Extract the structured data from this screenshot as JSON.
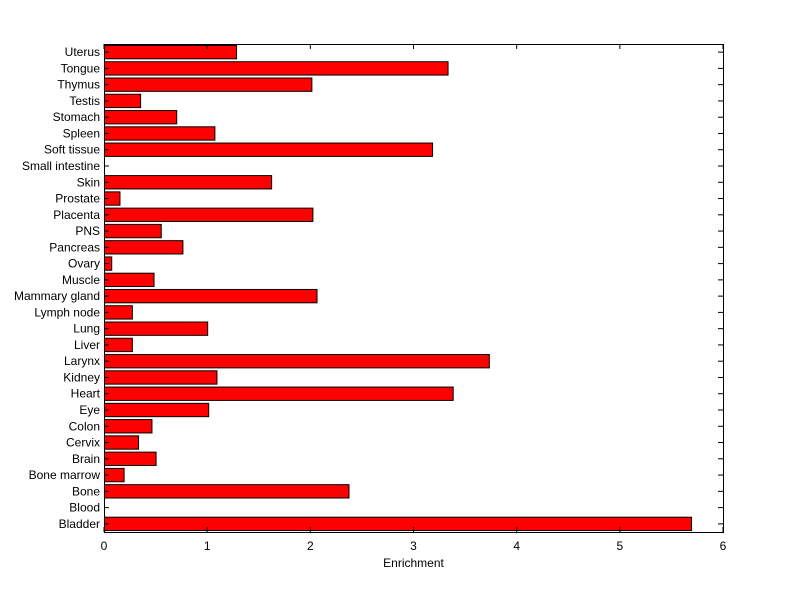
{
  "chart_data": {
    "type": "bar",
    "orientation": "horizontal",
    "categories": [
      "Bladder",
      "Blood",
      "Bone",
      "Bone marrow",
      "Brain",
      "Cervix",
      "Colon",
      "Eye",
      "Heart",
      "Kidney",
      "Larynx",
      "Liver",
      "Lung",
      "Lymph node",
      "Mammary gland",
      "Muscle",
      "Ovary",
      "Pancreas",
      "PNS",
      "Placenta",
      "Prostate",
      "Skin",
      "Small intestine",
      "Soft tissue",
      "Spleen",
      "Stomach",
      "Testis",
      "Thymus",
      "Tongue",
      "Uterus"
    ],
    "values": [
      5.69,
      0,
      2.37,
      0.19,
      0.5,
      0.33,
      0.46,
      1.01,
      3.38,
      1.09,
      3.73,
      0.27,
      1.0,
      0.27,
      2.06,
      0.48,
      0.07,
      0.76,
      0.55,
      2.02,
      0.15,
      1.62,
      0,
      3.18,
      1.07,
      0.7,
      0.35,
      2.01,
      3.33,
      1.28
    ],
    "title": "",
    "xlabel": "Enrichment",
    "ylabel": "",
    "xlim": [
      0,
      6
    ],
    "xticks": [
      "0",
      "1",
      "2",
      "3",
      "4",
      "5",
      "6"
    ],
    "grid": false,
    "colors": {
      "bar_fill": "#ff0000",
      "bar_edge": "#000000",
      "axes": "#000000",
      "background": "#ffffff"
    }
  }
}
